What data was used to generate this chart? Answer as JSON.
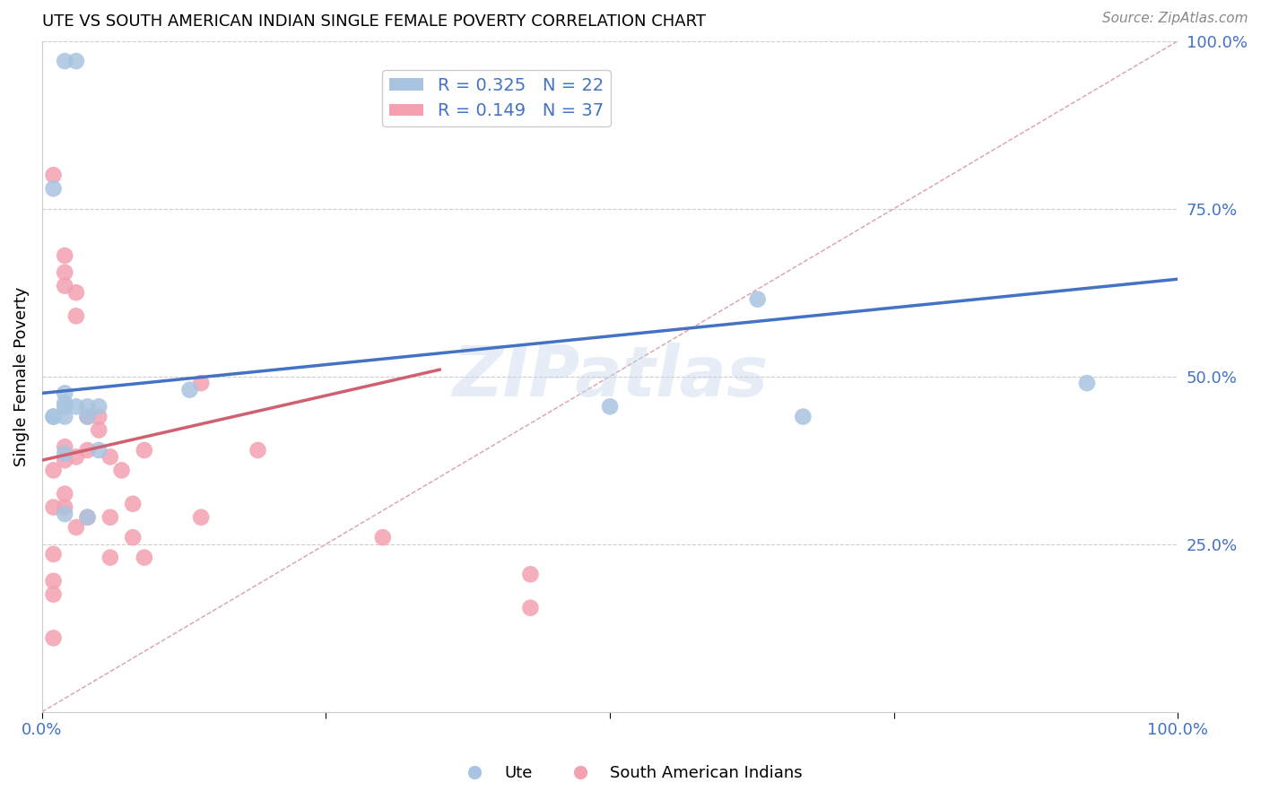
{
  "title": "UTE VS SOUTH AMERICAN INDIAN SINGLE FEMALE POVERTY CORRELATION CHART",
  "source": "Source: ZipAtlas.com",
  "ylabel": "Single Female Poverty",
  "xlim": [
    0,
    1
  ],
  "ylim": [
    0,
    1
  ],
  "yticks": [
    0.25,
    0.5,
    0.75,
    1.0
  ],
  "ytick_labels": [
    "25.0%",
    "50.0%",
    "75.0%",
    "100.0%"
  ],
  "xticks": [
    0.0,
    0.25,
    0.5,
    0.75,
    1.0
  ],
  "xtick_labels": [
    "0.0%",
    "",
    "",
    "",
    "100.0%"
  ],
  "ute_color": "#a8c4e0",
  "sam_color": "#f4a0b0",
  "ute_line_color": "#4472c4",
  "sam_line_color": "#d06070",
  "diagonal_color": "#d8a0a8",
  "ute_R": 0.325,
  "ute_N": 22,
  "sam_R": 0.149,
  "sam_N": 37,
  "watermark": "ZIPatlas",
  "background_color": "#ffffff",
  "grid_color": "#cccccc",
  "ute_line_x0": 0.0,
  "ute_line_y0": 0.475,
  "ute_line_x1": 1.0,
  "ute_line_y1": 0.645,
  "sam_line_x0": 0.0,
  "sam_line_y0": 0.375,
  "sam_line_x1": 0.35,
  "sam_line_y1": 0.51,
  "ute_points_x": [
    0.02,
    0.03,
    0.01,
    0.02,
    0.02,
    0.02,
    0.03,
    0.01,
    0.02,
    0.04,
    0.04,
    0.05,
    0.02,
    0.04,
    0.05,
    0.13,
    0.5,
    0.63,
    0.67,
    0.92,
    0.01,
    0.02
  ],
  "ute_points_y": [
    0.97,
    0.97,
    0.78,
    0.475,
    0.455,
    0.44,
    0.455,
    0.44,
    0.385,
    0.455,
    0.44,
    0.455,
    0.295,
    0.29,
    0.39,
    0.48,
    0.455,
    0.615,
    0.44,
    0.49,
    0.44,
    0.46
  ],
  "sam_points_x": [
    0.01,
    0.01,
    0.01,
    0.01,
    0.01,
    0.01,
    0.01,
    0.02,
    0.02,
    0.02,
    0.02,
    0.02,
    0.02,
    0.02,
    0.03,
    0.03,
    0.03,
    0.03,
    0.04,
    0.04,
    0.04,
    0.05,
    0.05,
    0.06,
    0.06,
    0.06,
    0.07,
    0.08,
    0.08,
    0.09,
    0.09,
    0.14,
    0.14,
    0.19,
    0.3,
    0.43,
    0.43
  ],
  "sam_points_y": [
    0.8,
    0.36,
    0.305,
    0.235,
    0.195,
    0.175,
    0.11,
    0.68,
    0.655,
    0.635,
    0.395,
    0.375,
    0.325,
    0.305,
    0.625,
    0.59,
    0.38,
    0.275,
    0.44,
    0.39,
    0.29,
    0.44,
    0.42,
    0.38,
    0.29,
    0.23,
    0.36,
    0.31,
    0.26,
    0.39,
    0.23,
    0.49,
    0.29,
    0.39,
    0.26,
    0.205,
    0.155
  ]
}
